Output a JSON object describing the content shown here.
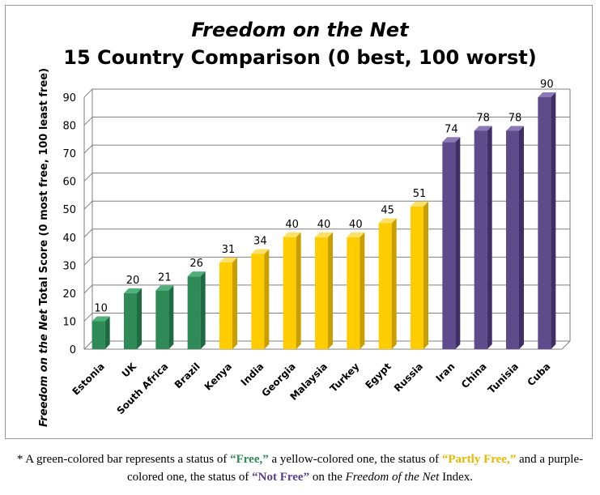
{
  "chart_data": {
    "type": "bar",
    "title": "Freedom on the Net",
    "subtitle": "15 Country Comparison (0 best, 100 worst)",
    "ylabel_italic": "Freedom on the Net",
    "ylabel_rest": " Total Score (0 most free, 100 least free)",
    "xlabel": "",
    "ylim": [
      0,
      90
    ],
    "yticks": [
      0,
      10,
      20,
      30,
      40,
      50,
      60,
      70,
      80,
      90
    ],
    "grid": true,
    "categories": [
      "Estonia",
      "UK",
      "South Africa",
      "Brazil",
      "Kenya",
      "India",
      "Georgia",
      "Malaysia",
      "Turkey",
      "Egypt",
      "Russia",
      "Iran",
      "China",
      "Tunisia",
      "Cuba"
    ],
    "values": [
      10,
      20,
      21,
      26,
      31,
      34,
      40,
      40,
      40,
      45,
      51,
      74,
      78,
      78,
      90
    ],
    "status": [
      "free",
      "free",
      "free",
      "free",
      "partly",
      "partly",
      "partly",
      "partly",
      "partly",
      "partly",
      "partly",
      "not",
      "not",
      "not",
      "not"
    ],
    "colors": {
      "free": {
        "front": "#2e8b57",
        "side": "#1f6b41",
        "top": "#4fb07a"
      },
      "partly": {
        "front": "#ffcc00",
        "side": "#c99f00",
        "top": "#ffe066"
      },
      "not": {
        "front": "#5e4b8b",
        "side": "#3f2f66",
        "top": "#8a78b5"
      }
    }
  },
  "footnote": {
    "part1": "* A green-colored bar represents a status of ",
    "free": "“Free,”",
    "part2": " a yellow-colored one, the status of ",
    "partly": "“Partly Free,”",
    "part3": " and a purple-colored one, the status of ",
    "notfree": "“Not Free”",
    "part4": " on the ",
    "index": "Freedom of the Net",
    "part5": " Index."
  }
}
